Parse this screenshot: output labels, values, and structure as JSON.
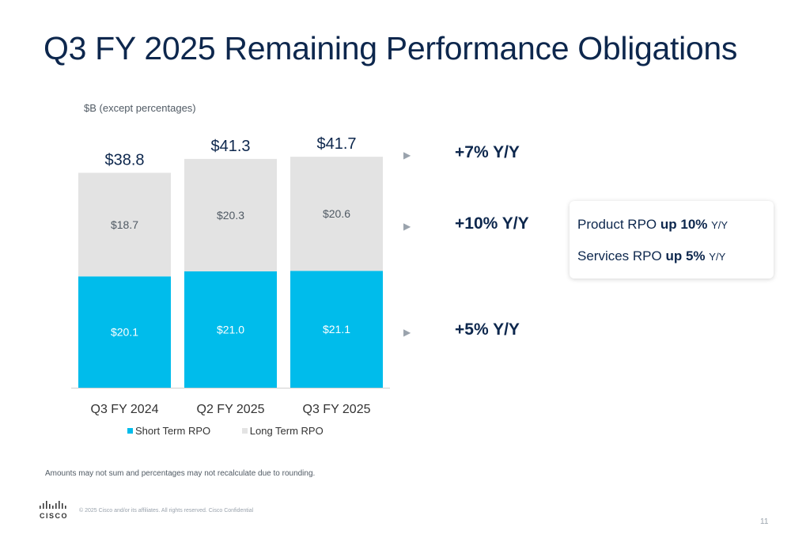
{
  "slide": {
    "title": "Q3 FY 2025 Remaining Performance Obligations",
    "footnote": "Amounts may not sum and percentages may not recalculate due to rounding.",
    "copyright": "© 2025  Cisco and/or its affiliates. All rights reserved.   Cisco Confidential",
    "logo_text": "CISCO",
    "page_number": "11"
  },
  "growth": [
    {
      "label": "+7% Y/Y"
    },
    {
      "label": "+10% Y/Y"
    },
    {
      "label": "+5% Y/Y"
    }
  ],
  "callout": {
    "product": {
      "prefix": "Product RPO ",
      "emphasis": "up 10%",
      "suffix": "Y/Y"
    },
    "services": {
      "prefix": "Services RPO ",
      "emphasis": "up 5%",
      "suffix": "Y/Y"
    }
  },
  "chart_data": {
    "type": "bar",
    "stacked": true,
    "ylabel": "$B (except percentages)",
    "categories": [
      "Q3 FY 2024",
      "Q2 FY 2025",
      "Q3 FY 2025"
    ],
    "totals": [
      38.8,
      41.3,
      41.7
    ],
    "total_labels": [
      "$38.8",
      "$41.3",
      "$41.7"
    ],
    "ylim": [
      0,
      45
    ],
    "grid": false,
    "legend_position": "bottom",
    "series": [
      {
        "name": "Short Term RPO",
        "values": [
          20.1,
          21.0,
          21.1
        ],
        "labels": [
          "$20.1",
          "$21.0",
          "$21.1"
        ],
        "color": "#00bceb"
      },
      {
        "name": "Long Term RPO",
        "values": [
          18.7,
          20.3,
          20.6
        ],
        "labels": [
          "$18.7",
          "$20.3",
          "$20.6"
        ],
        "color": "#e3e3e3"
      }
    ]
  }
}
